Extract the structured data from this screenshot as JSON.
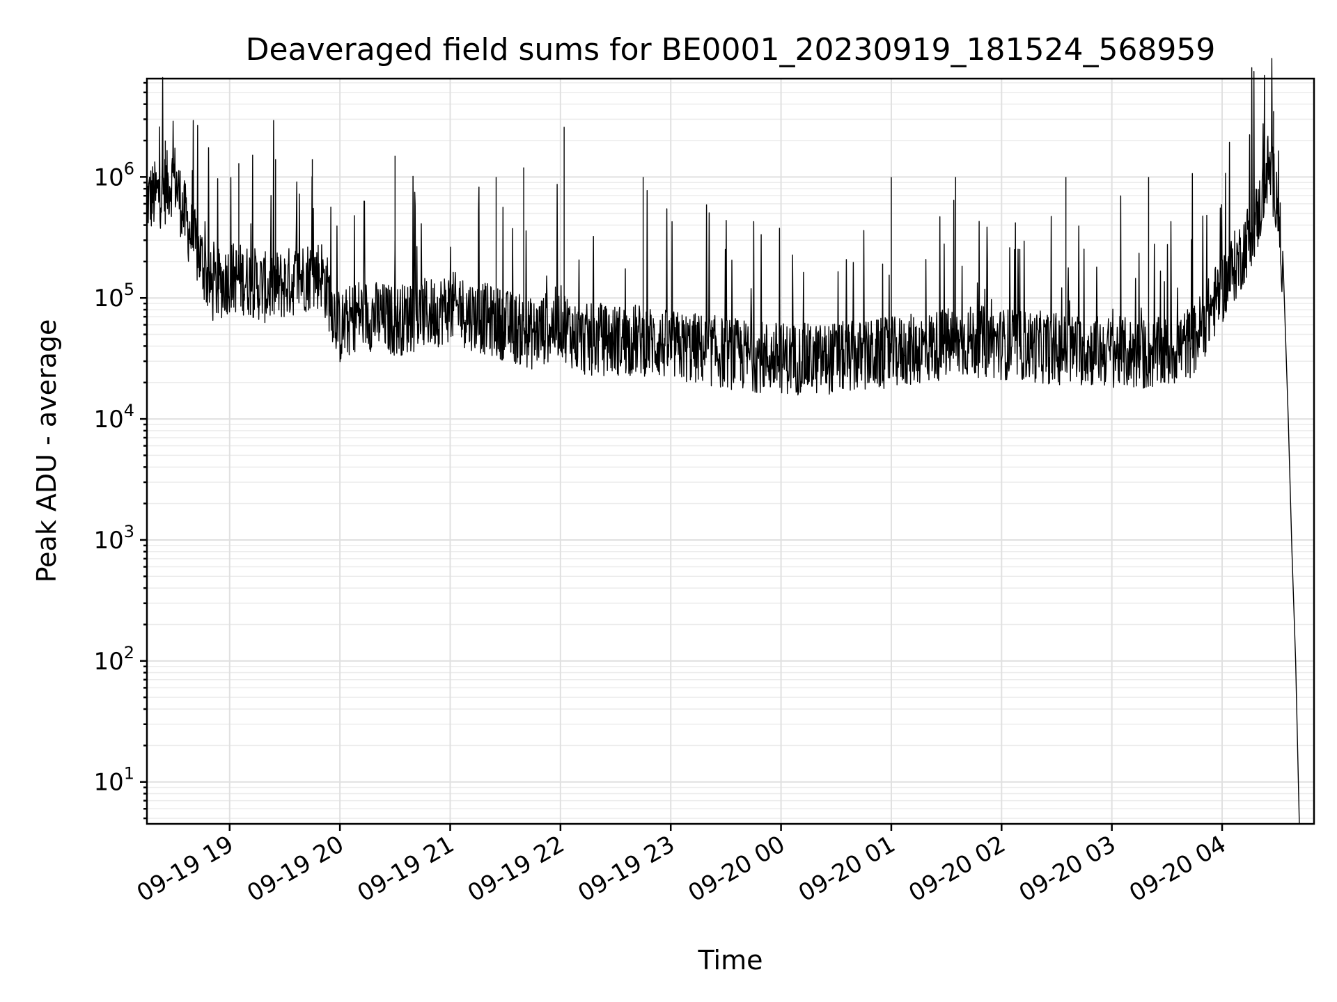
{
  "chart_data": {
    "type": "line",
    "title": "Deaveraged field sums for BE0001_20230919_181524_568959",
    "xlabel": "Time",
    "ylabel": "Peak ADU - average",
    "yscale": "log",
    "ylim": [
      4.5,
      6500000
    ],
    "xlim": [
      "2023-09-19 18:15",
      "2023-09-20 04:50"
    ],
    "grid": true,
    "x_ticks": [
      "2023-09-19 19:00",
      "2023-09-19 20:00",
      "2023-09-19 21:00",
      "2023-09-19 22:00",
      "2023-09-19 23:00",
      "2023-09-20 00:00",
      "2023-09-20 01:00",
      "2023-09-20 02:00",
      "2023-09-20 03:00",
      "2023-09-20 04:00"
    ],
    "x_tick_labels": [
      "09-19 19",
      "09-19 20",
      "09-19 21",
      "09-19 22",
      "09-19 23",
      "09-20 00",
      "09-20 01",
      "09-20 02",
      "09-20 03",
      "09-20 04"
    ],
    "y_ticks": [
      10,
      100,
      1000,
      10000,
      100000,
      1000000
    ],
    "y_tick_labels": [
      {
        "base": "10",
        "exp": "1"
      },
      {
        "base": "10",
        "exp": "2"
      },
      {
        "base": "10",
        "exp": "3"
      },
      {
        "base": "10",
        "exp": "4"
      },
      {
        "base": "10",
        "exp": "5"
      },
      {
        "base": "10",
        "exp": "6"
      }
    ],
    "series": [
      {
        "color": "#000000",
        "points": [
          [
            "2023-09-19 18:15",
            650000
          ],
          [
            "2023-09-19 18:20",
            700000
          ],
          [
            "2023-09-19 18:25",
            800000
          ],
          [
            "2023-09-19 18:30",
            1000000
          ],
          [
            "2023-09-19 18:35",
            500000
          ],
          [
            "2023-09-19 18:40",
            300000
          ],
          [
            "2023-09-19 18:45",
            200000
          ],
          [
            "2023-09-19 18:50",
            120000
          ],
          [
            "2023-09-19 18:55",
            130000
          ],
          [
            "2023-09-19 19:00",
            150000
          ],
          [
            "2023-09-19 19:10",
            140000
          ],
          [
            "2023-09-19 19:20",
            120000
          ],
          [
            "2023-09-19 19:30",
            130000
          ],
          [
            "2023-09-19 19:40",
            150000
          ],
          [
            "2023-09-19 19:50",
            160000
          ],
          [
            "2023-09-19 20:00",
            55000
          ],
          [
            "2023-09-19 20:10",
            75000
          ],
          [
            "2023-09-19 20:20",
            70000
          ],
          [
            "2023-09-19 20:30",
            65000
          ],
          [
            "2023-09-19 20:40",
            70000
          ],
          [
            "2023-09-19 20:50",
            75000
          ],
          [
            "2023-09-19 21:00",
            85000
          ],
          [
            "2023-09-19 21:15",
            70000
          ],
          [
            "2023-09-19 21:30",
            60000
          ],
          [
            "2023-09-19 21:45",
            50000
          ],
          [
            "2023-09-19 22:00",
            65000
          ],
          [
            "2023-09-19 22:10",
            45000
          ],
          [
            "2023-09-19 22:30",
            45000
          ],
          [
            "2023-09-19 22:45",
            45000
          ],
          [
            "2023-09-19 23:00",
            40000
          ],
          [
            "2023-09-19 23:15",
            38000
          ],
          [
            "2023-09-19 23:30",
            35000
          ],
          [
            "2023-09-19 23:45",
            33000
          ],
          [
            "2023-09-20 00:00",
            32000
          ],
          [
            "2023-09-20 00:15",
            31000
          ],
          [
            "2023-09-20 00:30",
            32000
          ],
          [
            "2023-09-20 00:45",
            33000
          ],
          [
            "2023-09-20 01:00",
            35000
          ],
          [
            "2023-09-20 01:15",
            38000
          ],
          [
            "2023-09-20 01:30",
            42000
          ],
          [
            "2023-09-20 01:45",
            44000
          ],
          [
            "2023-09-20 02:00",
            42000
          ],
          [
            "2023-09-20 02:15",
            40000
          ],
          [
            "2023-09-20 02:30",
            38000
          ],
          [
            "2023-09-20 02:45",
            37000
          ],
          [
            "2023-09-20 03:00",
            36000
          ],
          [
            "2023-09-20 03:15",
            34000
          ],
          [
            "2023-09-20 03:30",
            35000
          ],
          [
            "2023-09-20 03:45",
            45000
          ],
          [
            "2023-09-20 04:00",
            120000
          ],
          [
            "2023-09-20 04:10",
            220000
          ],
          [
            "2023-09-20 04:20",
            500000
          ],
          [
            "2023-09-20 04:25",
            1200000
          ],
          [
            "2023-09-20 04:30",
            700000
          ],
          [
            "2023-09-20 04:33",
            150000
          ],
          [
            "2023-09-20 04:36",
            10000
          ],
          [
            "2023-09-20 04:38",
            800
          ],
          [
            "2023-09-20 04:40",
            100
          ],
          [
            "2023-09-20 04:42",
            4.5
          ]
        ],
        "spikes": [
          [
            "2023-09-19 18:25",
            2000000
          ],
          [
            "2023-09-19 19:05",
            1300000
          ],
          [
            "2023-09-19 19:25",
            1400000
          ],
          [
            "2023-09-19 19:45",
            1400000
          ],
          [
            "2023-09-19 20:30",
            1500000
          ],
          [
            "2023-09-19 21:25",
            1000000
          ],
          [
            "2023-09-19 21:40",
            1200000
          ],
          [
            "2023-09-19 22:02",
            2600000
          ],
          [
            "2023-09-19 22:45",
            1000000
          ],
          [
            "2023-09-20 01:00",
            1000000
          ],
          [
            "2023-09-20 01:35",
            1000000
          ],
          [
            "2023-09-20 02:35",
            1000000
          ],
          [
            "2023-09-20 03:20",
            1000000
          ],
          [
            "2023-09-20 04:28",
            3500000
          ]
        ]
      }
    ]
  }
}
